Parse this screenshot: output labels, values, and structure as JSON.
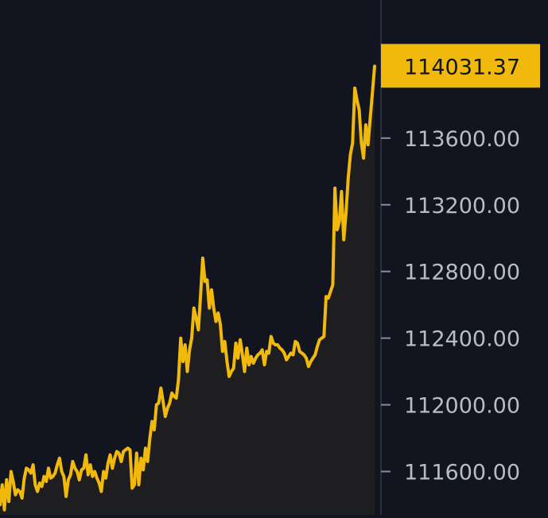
{
  "chart_data": {
    "type": "area",
    "title": "",
    "xlabel": "",
    "ylabel": "",
    "ylim": [
      111340,
      114400
    ],
    "y_ticks": [
      "113600.00",
      "113200.00",
      "112800.00",
      "112400.00",
      "112000.00",
      "111600.00"
    ],
    "grid": false,
    "last_price": "114031.37",
    "series": [
      {
        "values": [
          111400,
          111520,
          111370,
          111550,
          111420,
          111600,
          111540,
          111460,
          111490,
          111480,
          111440,
          111560,
          111620,
          111610,
          111590,
          111640,
          111520,
          111480,
          111530,
          111510,
          111570,
          111540,
          111620,
          111560,
          111570,
          111590,
          111640,
          111680,
          111600,
          111570,
          111450,
          111550,
          111580,
          111660,
          111620,
          111600,
          111550,
          111610,
          111620,
          111700,
          111580,
          111640,
          111570,
          111600,
          111560,
          111530,
          111480,
          111600,
          111560,
          111650,
          111700,
          111620,
          111680,
          111720,
          111710,
          111660,
          111720,
          111730,
          111740,
          111730,
          111500,
          111520,
          111710,
          111520,
          111680,
          111610,
          111740,
          111660,
          111800,
          111900,
          111850,
          112000,
          112010,
          112100,
          112020,
          111930,
          111980,
          112010,
          112070,
          112050,
          112040,
          112150,
          112400,
          112260,
          112360,
          112200,
          112330,
          112400,
          112580,
          112520,
          112450,
          112650,
          112880,
          112740,
          112750,
          112580,
          112690,
          112580,
          112500,
          112550,
          112480,
          112320,
          112380,
          112260,
          112170,
          112200,
          112220,
          112370,
          112280,
          112390,
          112300,
          112200,
          112340,
          112240,
          112290,
          112250,
          112280,
          112300,
          112310,
          112330,
          112240,
          112320,
          112310,
          112410,
          112370,
          112360,
          112360,
          112340,
          112330,
          112310,
          112270,
          112290,
          112310,
          112300,
          112380,
          112370,
          112320,
          112310,
          112300,
          112280,
          112230,
          112260,
          112280,
          112300,
          112350,
          112390,
          112400,
          112410,
          112650,
          112640,
          112680,
          112720,
          113300,
          113050,
          113100,
          113280,
          112990,
          113150,
          113360,
          113500,
          113570,
          113900,
          113830,
          113770,
          113570,
          113480,
          113680,
          113560,
          113720,
          113870,
          114031
        ]
      }
    ]
  }
}
